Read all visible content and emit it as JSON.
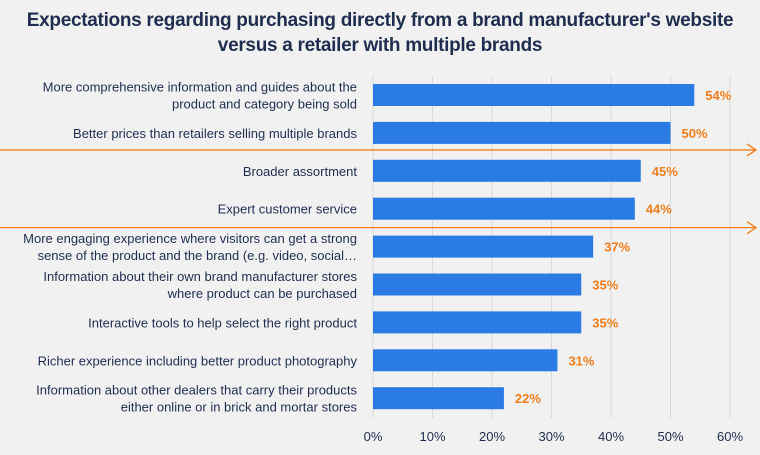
{
  "chart_data": {
    "type": "bar",
    "orientation": "horizontal",
    "title": "Expectations regarding purchasing directly from a brand manufacturer's website versus a retailer with multiple brands",
    "categories": [
      [
        "More comprehensive information and guides about the",
        "product and category being sold"
      ],
      [
        "Better prices than retailers selling multiple brands"
      ],
      [
        "Broader assortment"
      ],
      [
        "Expert customer service"
      ],
      [
        "More engaging experience where visitors can get a strong",
        "sense of the product and the brand (e.g. video, social…"
      ],
      [
        "Information about their own brand manufacturer stores",
        "where product can be purchased"
      ],
      [
        "Interactive tools to help select the right product"
      ],
      [
        "Richer experience including better product photography"
      ],
      [
        "Information about other dealers that carry their products",
        "either online or in brick and mortar stores"
      ]
    ],
    "values": [
      54,
      50,
      45,
      44,
      37,
      35,
      35,
      31,
      22
    ],
    "data_labels": [
      "54%",
      "50%",
      "45%",
      "44%",
      "37%",
      "35%",
      "35%",
      "31%",
      "22%"
    ],
    "xlim": [
      0,
      60
    ],
    "x_ticks": [
      "0%",
      "10%",
      "20%",
      "30%",
      "40%",
      "50%",
      "60%"
    ],
    "grid": true,
    "annotations": "two orange arrows highlighting the rows Broader assortment and Expert customer service",
    "colors": {
      "bar": "#2a7be4",
      "label": "#f07d1a",
      "text": "#1f2d4f",
      "grid": "#d9d9d9",
      "arrow": "#f07d1a",
      "background": "#f1f1f1"
    }
  }
}
